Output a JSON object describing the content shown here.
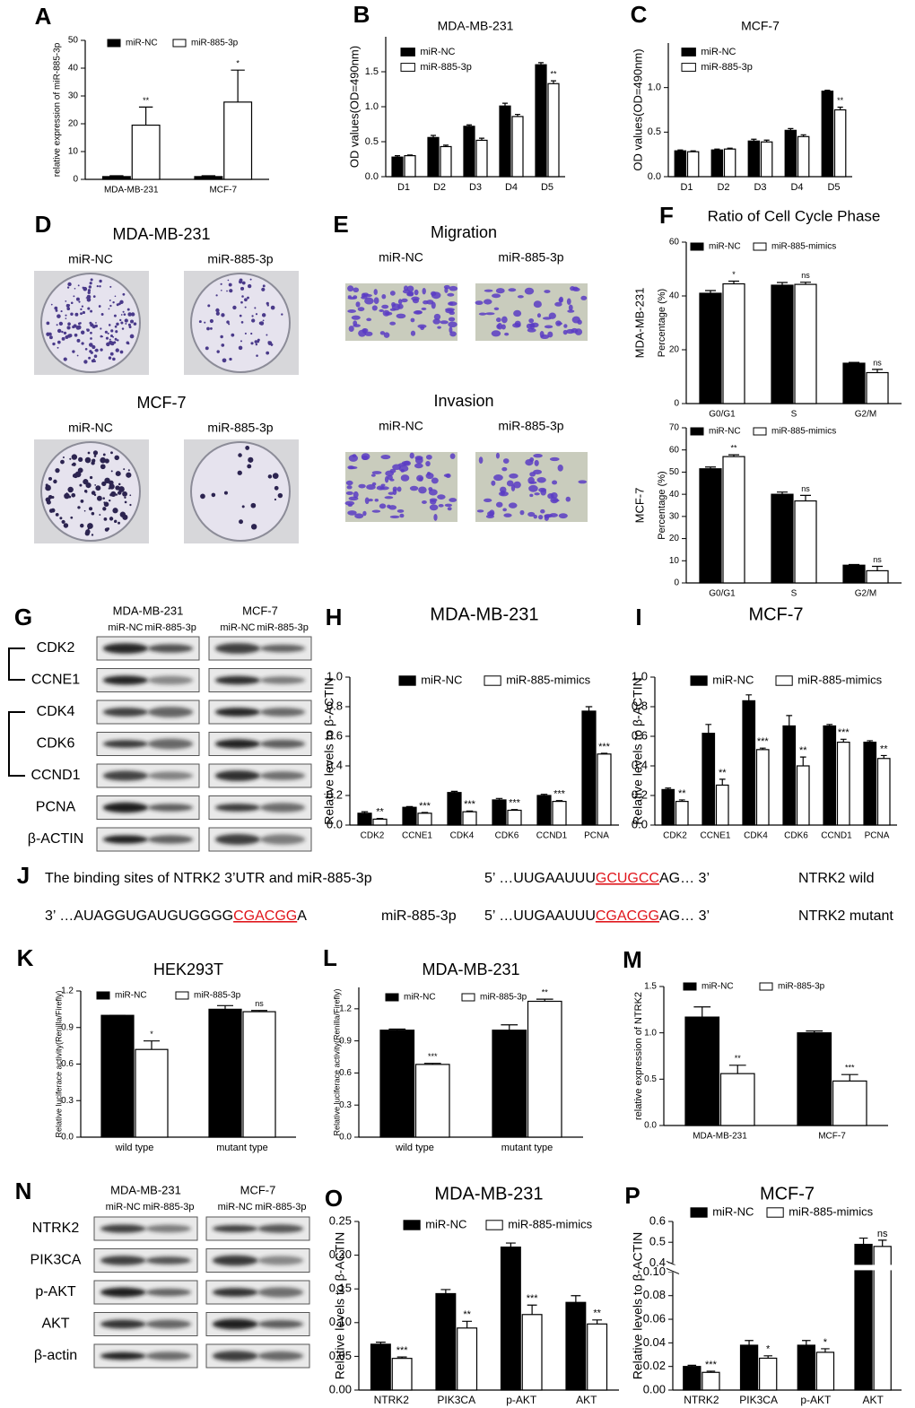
{
  "chart_data": [
    {
      "type": "bar",
      "panel": "A",
      "ylabel": "relative expression of miR-885-3p",
      "categories": [
        "MDA-MB-231",
        "MCF-7"
      ],
      "series": [
        {
          "name": "miR-NC",
          "color": "#000000",
          "values": [
            1,
            1
          ],
          "errors": [
            0.3,
            0.3
          ]
        },
        {
          "name": "miR-885-3p",
          "color": "#ffffff",
          "values": [
            19.5,
            27.8
          ],
          "errors": [
            6.5,
            11.5
          ]
        }
      ],
      "significance": [
        "**",
        "*"
      ],
      "ylim": [
        0,
        50
      ],
      "yticks": [
        0,
        10,
        20,
        30,
        40,
        50
      ]
    },
    {
      "type": "bar",
      "panel": "B",
      "title": "MDA-MB-231",
      "ylabel": "OD values(OD=490nm)",
      "categories": [
        "D1",
        "D2",
        "D3",
        "D4",
        "D5"
      ],
      "series": [
        {
          "name": "miR-NC",
          "color": "#000000",
          "values": [
            0.28,
            0.56,
            0.72,
            1.01,
            1.6
          ],
          "errors": [
            0.02,
            0.03,
            0.02,
            0.04,
            0.03
          ]
        },
        {
          "name": "miR-885-3p",
          "color": "#ffffff",
          "values": [
            0.3,
            0.43,
            0.52,
            0.86,
            1.33
          ],
          "errors": [
            0.01,
            0.02,
            0.03,
            0.03,
            0.04
          ]
        }
      ],
      "significance": [
        null,
        null,
        null,
        null,
        "**"
      ],
      "ylim": [
        0,
        2.0
      ],
      "yticks": [
        {
          "value": 0,
          "label": "0.0"
        },
        0.5,
        {
          "value": 1,
          "label": "1.0"
        },
        1.5
      ]
    },
    {
      "type": "bar",
      "panel": "C",
      "title": "MCF-7",
      "ylabel": "OD values(OD=490nm)",
      "categories": [
        "D1",
        "D2",
        "D3",
        "D4",
        "D5"
      ],
      "series": [
        {
          "name": "miR-NC",
          "color": "#000000",
          "values": [
            0.29,
            0.3,
            0.4,
            0.52,
            0.96
          ],
          "errors": [
            0.01,
            0.01,
            0.02,
            0.02,
            0.01
          ]
        },
        {
          "name": "miR-885-3p",
          "color": "#ffffff",
          "values": [
            0.28,
            0.31,
            0.39,
            0.45,
            0.75
          ],
          "errors": [
            0.01,
            0.01,
            0.02,
            0.02,
            0.03
          ]
        }
      ],
      "significance": [
        null,
        null,
        null,
        null,
        "**"
      ],
      "ylim": [
        0,
        1.5
      ],
      "yticks": [
        {
          "value": 0,
          "label": "0.0"
        },
        0.5,
        {
          "value": 1,
          "label": "1.0"
        }
      ]
    },
    {
      "type": "bar",
      "panel": "F",
      "title": "Ratio of Cell Cycle Phase",
      "cell_line": "MDA-MB-231",
      "ylabel": "Percentage (%)",
      "categories": [
        "G0/G1",
        "S",
        "G2/M"
      ],
      "series": [
        {
          "name": "miR-NC",
          "color": "#000000",
          "values": [
            41,
            44,
            15
          ],
          "errors": [
            1,
            1,
            0.3
          ]
        },
        {
          "name": "miR-885-mimics",
          "color": "#ffffff",
          "values": [
            44.5,
            44.3,
            11.5
          ],
          "errors": [
            1,
            0.8,
            1.2
          ]
        }
      ],
      "significance": [
        "*",
        "ns",
        "ns"
      ],
      "ylim": [
        0,
        60
      ],
      "yticks": [
        0,
        20,
        40,
        60
      ]
    },
    {
      "type": "bar",
      "cell_line": "MCF-7",
      "ylabel": "Percentage (%)",
      "categories": [
        "G0/G1",
        "S",
        "G2/M"
      ],
      "series": [
        {
          "name": "miR-NC",
          "color": "#000000",
          "values": [
            51.5,
            40,
            8
          ],
          "errors": [
            0.8,
            1,
            0.3
          ]
        },
        {
          "name": "miR-885-mimics",
          "color": "#ffffff",
          "values": [
            57,
            37,
            5.5
          ],
          "errors": [
            0.8,
            2.5,
            2
          ]
        }
      ],
      "significance": [
        "**",
        "ns",
        "ns"
      ],
      "ylim": [
        0,
        70
      ],
      "yticks": [
        0,
        10,
        20,
        30,
        40,
        50,
        60,
        70
      ]
    },
    {
      "type": "bar",
      "panel": "H",
      "title": "MDA-MB-231",
      "ylabel": "Relative levels to β-ACTIN",
      "categories": [
        "CDK2",
        "CCNE1",
        "CDK4",
        "CDK6",
        "CCND1",
        "PCNA"
      ],
      "series": [
        {
          "name": "miR-NC",
          "color": "#000000",
          "values": [
            0.08,
            0.12,
            0.22,
            0.17,
            0.2,
            0.77
          ],
          "errors": [
            0.01,
            0.005,
            0.008,
            0.01,
            0.008,
            0.03
          ]
        },
        {
          "name": "miR-885-mimics",
          "color": "#ffffff",
          "values": [
            0.04,
            0.08,
            0.09,
            0.1,
            0.16,
            0.48
          ],
          "errors": [
            0.005,
            0.005,
            0.005,
            0.005,
            0.005,
            0.005
          ]
        }
      ],
      "significance": [
        "**",
        "***",
        "***",
        "***",
        "***",
        "***"
      ],
      "ylim": [
        0,
        1.0
      ],
      "yticks": [
        {
          "value": 0,
          "label": "0.0"
        },
        0.2,
        0.4,
        0.6,
        0.8,
        {
          "value": 1,
          "label": "1.0"
        }
      ]
    },
    {
      "type": "bar",
      "panel": "I",
      "title": "MCF-7",
      "ylabel": "Relative levels to β-ACTIN",
      "categories": [
        "CDK2",
        "CCNE1",
        "CDK4",
        "CDK6",
        "CCND1",
        "PCNA"
      ],
      "series": [
        {
          "name": "miR-NC",
          "color": "#000000",
          "values": [
            0.24,
            0.62,
            0.84,
            0.67,
            0.67,
            0.56
          ],
          "errors": [
            0.01,
            0.06,
            0.04,
            0.07,
            0.01,
            0.01
          ]
        },
        {
          "name": "miR-885-mimics",
          "color": "#ffffff",
          "values": [
            0.16,
            0.27,
            0.51,
            0.4,
            0.56,
            0.45
          ],
          "errors": [
            0.01,
            0.04,
            0.01,
            0.06,
            0.02,
            0.02
          ]
        }
      ],
      "significance": [
        "**",
        "**",
        "***",
        "**",
        "***",
        "**"
      ],
      "ylim": [
        0,
        1.0
      ],
      "yticks": [
        {
          "value": 0,
          "label": "0.0"
        },
        0.2,
        0.4,
        0.6,
        0.8,
        {
          "value": 1,
          "label": "1.0"
        }
      ]
    },
    {
      "type": "bar",
      "panel": "K",
      "title": "HEK293T",
      "ylabel": "Relative luciferace activity(Renilla/Firefly)",
      "categories": [
        "wild type",
        "mutant type"
      ],
      "series": [
        {
          "name": "miR-NC",
          "color": "#000000",
          "values": [
            1.0,
            1.05
          ],
          "errors": [
            0,
            0.03
          ]
        },
        {
          "name": "miR-885-3p",
          "color": "#ffffff",
          "values": [
            0.72,
            1.03
          ],
          "errors": [
            0.07,
            0.01
          ]
        }
      ],
      "significance": [
        "*",
        "ns"
      ],
      "ylim": [
        0,
        1.2
      ],
      "yticks": [
        {
          "value": 0,
          "label": "0.0"
        },
        0.3,
        0.6,
        0.9,
        1.2
      ]
    },
    {
      "type": "bar",
      "panel": "L",
      "title": "MDA-MB-231",
      "ylabel": "Relative luciferace activity(Renilla/Firefly)",
      "categories": [
        "wild type",
        "mutant type"
      ],
      "series": [
        {
          "name": "miR-NC",
          "color": "#000000",
          "values": [
            1.0,
            1.0
          ],
          "errors": [
            0.01,
            0.05
          ]
        },
        {
          "name": "miR-885-3p",
          "color": "#ffffff",
          "values": [
            0.68,
            1.27
          ],
          "errors": [
            0.01,
            0.02
          ]
        }
      ],
      "significance": [
        "***",
        "**"
      ],
      "ylim": [
        0,
        1.4
      ],
      "yticks": [
        {
          "value": 0,
          "label": "0.0"
        },
        0.3,
        0.6,
        0.9,
        1.2
      ]
    },
    {
      "type": "bar",
      "panel": "M",
      "ylabel": "relative expression of NTRK2",
      "categories": [
        "MDA-MB-231",
        "MCF-7"
      ],
      "series": [
        {
          "name": "miR-NC",
          "color": "#000000",
          "values": [
            1.17,
            1.0
          ],
          "errors": [
            0.11,
            0.02
          ]
        },
        {
          "name": "miR-885-3p",
          "color": "#ffffff",
          "values": [
            0.56,
            0.48
          ],
          "errors": [
            0.09,
            0.07
          ]
        }
      ],
      "significance": [
        "**",
        "***"
      ],
      "ylim": [
        0,
        1.5
      ],
      "yticks": [
        {
          "value": 0,
          "label": "0.0"
        },
        0.5,
        {
          "value": 1,
          "label": "1.0"
        },
        1.5
      ]
    },
    {
      "type": "bar",
      "panel": "O",
      "title": "MDA-MB-231",
      "ylabel": "Relative levels to β-ACTIN",
      "categories": [
        "NTRK2",
        "PIK3CA",
        "p-AKT",
        "AKT"
      ],
      "series": [
        {
          "name": "miR-NC",
          "color": "#000000",
          "values": [
            0.068,
            0.143,
            0.212,
            0.13
          ],
          "errors": [
            0.003,
            0.006,
            0.006,
            0.01
          ]
        },
        {
          "name": "miR-885-mimics",
          "color": "#ffffff",
          "values": [
            0.047,
            0.092,
            0.112,
            0.098
          ],
          "errors": [
            0.002,
            0.01,
            0.014,
            0.006
          ]
        }
      ],
      "significance": [
        "***",
        "**",
        "***",
        "**"
      ],
      "ylim": [
        0,
        0.25
      ],
      "yticks": [
        {
          "value": 0,
          "label": "0.00"
        },
        0.05,
        {
          "value": 0.1,
          "label": "0.10"
        },
        0.15,
        {
          "value": 0.2,
          "label": "0.20"
        },
        0.25
      ]
    },
    {
      "type": "bar",
      "panel": "P",
      "title": "MCF-7",
      "ylabel": "Relative levels to β-ACTIN",
      "categories": [
        "NTRK2",
        "PIK3CA",
        "p-AKT",
        "AKT"
      ],
      "series": [
        {
          "name": "miR-NC",
          "color": "#000000",
          "values": [
            0.02,
            0.038,
            0.038,
            0.49
          ],
          "errors": [
            0.001,
            0.004,
            0.004,
            0.03
          ]
        },
        {
          "name": "miR-885-mimics",
          "color": "#ffffff",
          "values": [
            0.015,
            0.027,
            0.032,
            0.48
          ],
          "errors": [
            0.001,
            0.002,
            0.003,
            0.03
          ]
        }
      ],
      "significance": [
        "***",
        "*",
        "*",
        "ns"
      ],
      "ylim": [
        0,
        0.6
      ],
      "ybreak": [
        0.1,
        0.4
      ],
      "yticks": [
        {
          "value": 0,
          "label": "0.00"
        },
        0.02,
        0.04,
        0.06,
        0.08,
        {
          "value": 0.1,
          "label": "0.10"
        },
        0.4,
        0.5,
        0.6
      ]
    }
  ],
  "colony_assay": {
    "panel": "D",
    "cell_lines": [
      "MDA-MB-231",
      "MCF-7"
    ],
    "conditions": [
      "miR-NC",
      "miR-885-3p"
    ]
  },
  "transwell_assay": {
    "panel": "E",
    "assays": [
      "Migration",
      "Invasion"
    ],
    "conditions": [
      "miR-NC",
      "miR-885-3p"
    ]
  },
  "western_blots": [
    {
      "panel": "G",
      "cell_lines": [
        "MDA-MB-231",
        "MCF-7"
      ],
      "lanes": [
        "miR-NC",
        "miR-885-3p",
        "miR-NC",
        "miR-885-3p"
      ],
      "proteins": [
        "CDK2",
        "CCNE1",
        "CDK4",
        "CDK6",
        "CCND1",
        "PCNA",
        "β-ACTIN"
      ]
    },
    {
      "panel": "N",
      "cell_lines": [
        "MDA-MB-231",
        "MCF-7"
      ],
      "lanes": [
        "miR-NC",
        "miR-885-3p",
        "miR-NC",
        "miR-885-3p"
      ],
      "proteins": [
        "NTRK2",
        "PIK3CA",
        "p-AKT",
        "AKT",
        "β-actin"
      ]
    }
  ],
  "binding_sites": {
    "panel": "J",
    "title": "The binding sites of NTRK2 3’UTR and miR-885-3p",
    "mirna": {
      "prefix": "3’ …AUAGGUGAUGUGGGG",
      "site": "CGACGG",
      "suffix": "A",
      "name": "miR-885-3p"
    },
    "wild": {
      "prefix": "5’ …UUGAAUUU",
      "site": "GCUGCC",
      "suffix": "AG… 3’",
      "name": "NTRK2 wild"
    },
    "mutant": {
      "prefix": "5’ …UUGAAUUU",
      "site": "CGACGG",
      "suffix": "AG… 3’",
      "name": "NTRK2 mutant"
    }
  }
}
